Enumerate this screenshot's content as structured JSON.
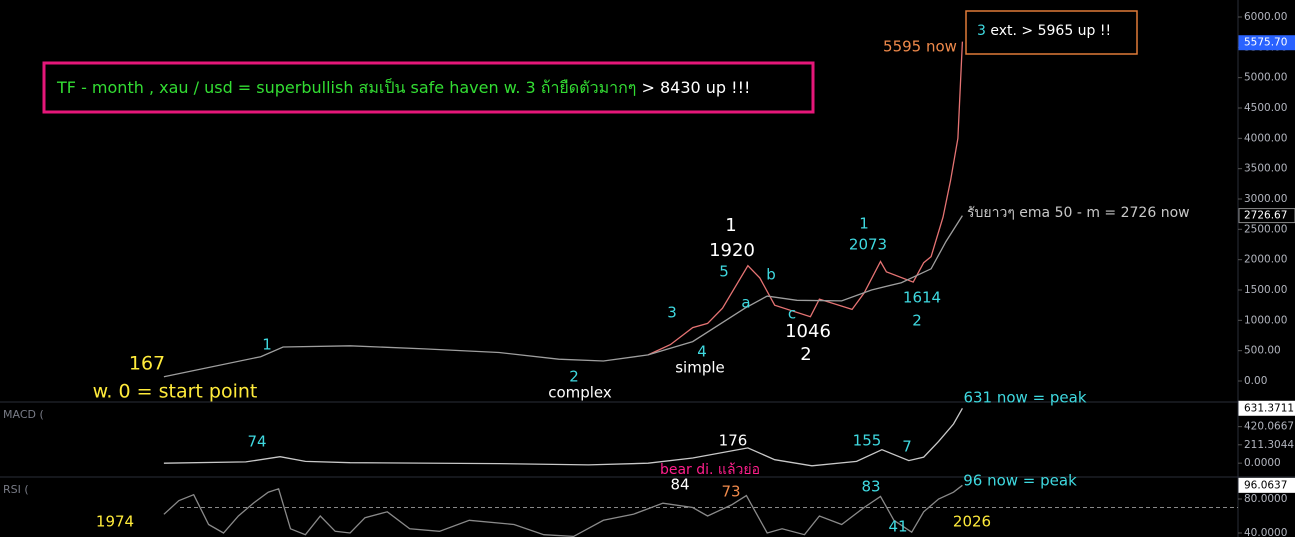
{
  "header": {
    "note_main": "TF - month , xau / usd = superbullish สมเป็น safe haven w. 3 ถ้ายืดตัวมากๆ",
    "note_main_tail": "> 8430 up !!!",
    "note_ext_wave": "3",
    "note_ext": "ext. > 5965 up !!"
  },
  "chart_data": [
    {
      "type": "line",
      "pane": "price",
      "xlim": [
        1961.5,
        2044.6
      ],
      "ylim": [
        -313,
        6280
      ],
      "yticks": [
        {
          "value": 0,
          "label": "0.00"
        },
        {
          "value": 500,
          "label": "500.00"
        },
        {
          "value": 1000,
          "label": "1000.00"
        },
        {
          "value": 1500,
          "label": "1500.00"
        },
        {
          "value": 2000,
          "label": "2000.00"
        },
        {
          "value": 2500,
          "label": "2500.00"
        },
        {
          "value": 3000,
          "label": "3000.00"
        },
        {
          "value": 3500,
          "label": "3500.00"
        },
        {
          "value": 4000,
          "label": "4000.00"
        },
        {
          "value": 4500,
          "label": "4500.00"
        },
        {
          "value": 5000,
          "label": "5000.00"
        },
        {
          "value": 5500,
          "label": "5500.00"
        },
        {
          "value": 6000,
          "label": "6000.00"
        }
      ],
      "tags": [
        {
          "value": 5575.7,
          "label": "5575.70",
          "color": "#2962ff"
        },
        {
          "value": 2726.67,
          "label": "2726.67",
          "color": "#000000"
        }
      ],
      "series": [
        {
          "color": "#e57373",
          "x": [
            2005,
            2006.5,
            2008,
            2009,
            2010,
            2011.7,
            2012.5,
            2013.5,
            2015.9,
            2016.5,
            2018.7,
            2019.5,
            2020.6,
            2021,
            2022.8,
            2023.5,
            2024,
            2024.8,
            2025.3,
            2025.8,
            2026.1
          ],
          "values": [
            430,
            600,
            880,
            950,
            1200,
            1900,
            1700,
            1250,
            1060,
            1350,
            1180,
            1450,
            1970,
            1800,
            1630,
            1950,
            2050,
            2700,
            3300,
            4000,
            5595
          ]
        },
        {
          "color": "#9e9e9e",
          "x": [
            1972.5,
            1979,
            1980.5,
            1985,
            1990,
            1995,
            1999,
            2002,
            2005,
            2008,
            2011.5,
            2013,
            2015,
            2018,
            2020,
            2022,
            2024,
            2025,
            2026.1
          ],
          "values": [
            70,
            400,
            560,
            580,
            530,
            470,
            360,
            330,
            430,
            650,
            1200,
            1400,
            1330,
            1320,
            1500,
            1620,
            1850,
            2300,
            2726
          ]
        }
      ],
      "annotations": [
        {
          "text": "5595 now",
          "color": "#f08a4b"
        },
        {
          "text": "รับยาวๆ ema 50 - m = 2726  now",
          "color": "#c8c8c8"
        },
        {
          "text": "167",
          "color": "#ffeb3b"
        },
        {
          "text": "w. 0 = start point",
          "color": "#ffeb3b"
        },
        {
          "text": "1",
          "color": "#3fd9e0"
        },
        {
          "text": "2",
          "color": "#3fd9e0"
        },
        {
          "text": "complex",
          "color": "#ffffff"
        },
        {
          "text": "3",
          "color": "#3fd9e0"
        },
        {
          "text": "4",
          "color": "#3fd9e0"
        },
        {
          "text": "simple",
          "color": "#ffffff"
        },
        {
          "text": "5",
          "color": "#3fd9e0"
        },
        {
          "text": "1",
          "color": "#ffffff"
        },
        {
          "text": "1920",
          "color": "#ffffff"
        },
        {
          "text": "a",
          "color": "#3fd9e0"
        },
        {
          "text": "b",
          "color": "#3fd9e0"
        },
        {
          "text": "c",
          "color": "#3fd9e0"
        },
        {
          "text": "1046",
          "color": "#ffffff"
        },
        {
          "text": "2",
          "color": "#ffffff"
        },
        {
          "text": "1",
          "color": "#3fd9e0"
        },
        {
          "text": "2073",
          "color": "#3fd9e0"
        },
        {
          "text": "1614",
          "color": "#3fd9e0"
        },
        {
          "text": "2",
          "color": "#3fd9e0"
        }
      ]
    },
    {
      "type": "line",
      "pane": "macd",
      "xlim": [
        1961.5,
        2044.6
      ],
      "ylim": [
        -159,
        692
      ],
      "yticks": [
        {
          "value": 0,
          "label": "0.0000"
        },
        {
          "value": 211.3044,
          "label": "211.3044"
        },
        {
          "value": 420.0667,
          "label": "420.0667"
        }
      ],
      "tags": [
        {
          "value": 631.3711,
          "label": "631.3711",
          "color": "#ffffff"
        }
      ],
      "series": [
        {
          "color": "#c8c8c8",
          "x": [
            1972.5,
            1978,
            1980.3,
            1982,
            1985,
            1995,
            2001,
            2005,
            2008,
            2011.7,
            2013.5,
            2016,
            2019,
            2020.7,
            2022.5,
            2023.5,
            2024.5,
            2025.5,
            2026.1
          ],
          "values": [
            0,
            15,
            74,
            20,
            5,
            -5,
            -20,
            0,
            60,
            176,
            40,
            -30,
            20,
            155,
            30,
            70,
            250,
            450,
            631
          ]
        }
      ],
      "annotations": [
        {
          "text": "MACD (",
          "color": "#787b86"
        },
        {
          "text": "74",
          "color": "#3fd9e0"
        },
        {
          "text": "176",
          "color": "#ffffff"
        },
        {
          "text": "155",
          "color": "#3fd9e0"
        },
        {
          "text": "7",
          "color": "#3fd9e0"
        },
        {
          "text": "631 now = peak",
          "color": "#3fd9e0"
        },
        {
          "text": "bear di. แล้วย่อ",
          "color": "#ff1e8c"
        }
      ]
    },
    {
      "type": "line",
      "pane": "rsi",
      "xlim": [
        1961.5,
        2044.6
      ],
      "ylim": [
        35.3,
        104.7
      ],
      "hline": 70,
      "yticks": [
        {
          "value": 40,
          "label": "40.0000"
        },
        {
          "value": 80,
          "label": "80.0000"
        }
      ],
      "tags": [
        {
          "value": 96.0637,
          "label": "96.0637",
          "color": "#ffffff"
        }
      ],
      "series": [
        {
          "color": "#8a8a8a",
          "x": [
            1972.5,
            1973.5,
            1974.5,
            1975.5,
            1976.5,
            1977.5,
            1978.5,
            1979.5,
            1980.2,
            1981,
            1982,
            1983,
            1984,
            1985,
            1986,
            1987.5,
            1989,
            1991,
            1993,
            1996,
            1998,
            2000,
            2002,
            2004,
            2006,
            2008,
            2009,
            2010.6,
            2011.6,
            2013,
            2014,
            2015.5,
            2016.5,
            2018,
            2019.5,
            2020.6,
            2021.5,
            2022.7,
            2023.5,
            2024.5,
            2025.5,
            2026.1
          ],
          "values": [
            62,
            78,
            85,
            50,
            40,
            60,
            75,
            88,
            92,
            45,
            38,
            60,
            42,
            40,
            58,
            65,
            45,
            42,
            55,
            50,
            38,
            36,
            55,
            62,
            75,
            70,
            60,
            73,
            84,
            40,
            45,
            38,
            60,
            50,
            70,
            83,
            55,
            41,
            65,
            80,
            88,
            96.06
          ]
        }
      ],
      "annotations": [
        {
          "text": "RSI (",
          "color": "#787b86"
        },
        {
          "text": "84",
          "color": "#ffffff"
        },
        {
          "text": "73",
          "color": "#f08a4b"
        },
        {
          "text": "83",
          "color": "#3fd9e0"
        },
        {
          "text": "41",
          "color": "#3fd9e0"
        },
        {
          "text": "96 now = peak",
          "color": "#3fd9e0"
        },
        {
          "text": "1974",
          "color": "#ffeb3b"
        },
        {
          "text": "2026",
          "color": "#ffeb3b"
        }
      ]
    }
  ]
}
